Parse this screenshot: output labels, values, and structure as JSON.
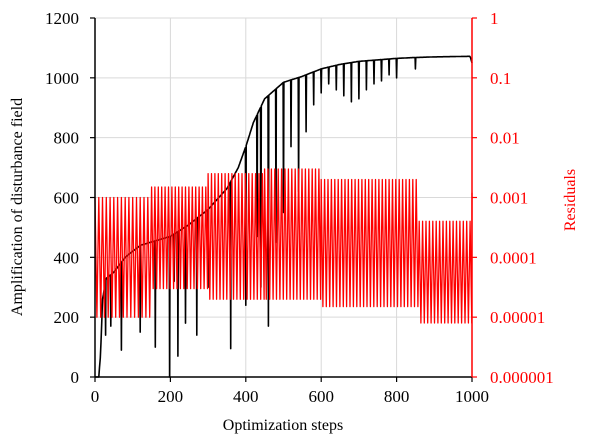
{
  "chart_data": {
    "type": "line",
    "xlabel": "Optimization steps",
    "ylabel": "Amplification of disturbance field",
    "ylabel_right": "Residuals",
    "xlim": [
      0,
      1000
    ],
    "ylim": [
      0,
      1200
    ],
    "ylim_right": [
      1e-06,
      1
    ],
    "y_right_scale": "log",
    "grid": true,
    "x_ticks": [
      "0",
      "200",
      "400",
      "600",
      "800",
      "1000"
    ],
    "y_ticks": [
      "0",
      "200",
      "400",
      "600",
      "800",
      "1000",
      "1200"
    ],
    "y_right_ticks": [
      "0.000001",
      "0.00001",
      "0.0001",
      "0.001",
      "0.01",
      "0.1",
      "1"
    ],
    "colors": {
      "left_series": "#000000",
      "right_series": "#ff0000",
      "grid": "#d9d9d9"
    },
    "series": [
      {
        "axis": "left",
        "color": "#000000",
        "envelope": [
          [
            0,
            0
          ],
          [
            10,
            0
          ],
          [
            15,
            80
          ],
          [
            20,
            260
          ],
          [
            30,
            330
          ],
          [
            50,
            350
          ],
          [
            80,
            400
          ],
          [
            120,
            440
          ],
          [
            200,
            470
          ],
          [
            250,
            510
          ],
          [
            300,
            560
          ],
          [
            350,
            630
          ],
          [
            380,
            700
          ],
          [
            400,
            770
          ],
          [
            420,
            850
          ],
          [
            450,
            930
          ],
          [
            500,
            985
          ],
          [
            550,
            1005
          ],
          [
            600,
            1030
          ],
          [
            650,
            1045
          ],
          [
            700,
            1055
          ],
          [
            750,
            1060
          ],
          [
            800,
            1065
          ],
          [
            850,
            1068
          ],
          [
            900,
            1070
          ],
          [
            950,
            1071
          ],
          [
            995,
            1072
          ],
          [
            1000,
            1050
          ]
        ],
        "dips": [
          [
            28,
            140
          ],
          [
            42,
            170
          ],
          [
            70,
            90
          ],
          [
            120,
            150
          ],
          [
            160,
            100
          ],
          [
            198,
            0
          ],
          [
            210,
            320
          ],
          [
            220,
            70
          ],
          [
            240,
            180
          ],
          [
            270,
            140
          ],
          [
            300,
            300
          ],
          [
            360,
            95
          ],
          [
            400,
            240
          ],
          [
            430,
            470
          ],
          [
            440,
            300
          ],
          [
            460,
            170
          ],
          [
            480,
            450
          ],
          [
            500,
            550
          ],
          [
            520,
            770
          ],
          [
            540,
            620
          ],
          [
            560,
            820
          ],
          [
            580,
            910
          ],
          [
            600,
            950
          ],
          [
            620,
            980
          ],
          [
            640,
            960
          ],
          [
            660,
            940
          ],
          [
            680,
            920
          ],
          [
            700,
            930
          ],
          [
            720,
            960
          ],
          [
            740,
            980
          ],
          [
            760,
            990
          ],
          [
            780,
            1010
          ],
          [
            800,
            1000
          ],
          [
            850,
            1030
          ]
        ]
      },
      {
        "axis": "right",
        "color": "#ff0000",
        "oscillation": [
          {
            "x_start": 0,
            "x_end": 150,
            "period": 10,
            "high": 0.001,
            "low": 1e-05
          },
          {
            "x_start": 150,
            "x_end": 300,
            "period": 9,
            "high": 0.0015,
            "low": 3e-05
          },
          {
            "x_start": 300,
            "x_end": 450,
            "period": 9,
            "high": 0.0025,
            "low": 2e-05
          },
          {
            "x_start": 450,
            "x_end": 600,
            "period": 9,
            "high": 0.003,
            "low": 2e-05
          },
          {
            "x_start": 600,
            "x_end": 860,
            "period": 9,
            "high": 0.002,
            "low": 1.5e-05
          },
          {
            "x_start": 860,
            "x_end": 1000,
            "period": 9,
            "high": 0.0004,
            "low": 8e-06
          }
        ]
      }
    ]
  }
}
